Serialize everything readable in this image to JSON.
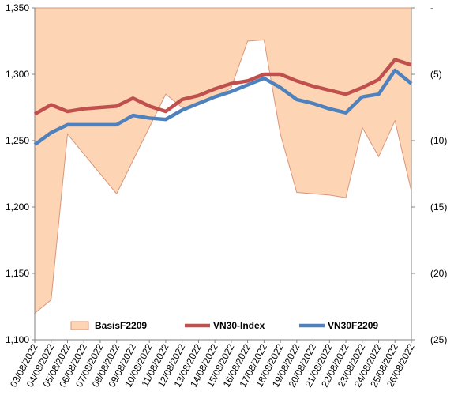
{
  "chart_data": {
    "type": "line",
    "categories": [
      "03/08/2022",
      "04/08/2022",
      "05/08/2022",
      "06/08/2022",
      "07/08/2022",
      "08/08/2022",
      "09/08/2022",
      "10/08/2022",
      "11/08/2022",
      "12/08/2022",
      "13/08/2022",
      "14/08/2022",
      "15/08/2022",
      "16/08/2022",
      "17/08/2022",
      "18/08/2022",
      "19/08/2022",
      "20/08/2022",
      "21/08/2022",
      "22/08/2022",
      "23/08/2022",
      "24/08/2022",
      "25/08/2022",
      "26/08/2022"
    ],
    "y_left": {
      "ylim": [
        1100,
        1350
      ],
      "ticks": [
        1100,
        1150,
        1200,
        1250,
        1300,
        1350
      ],
      "tick_labels": [
        "1,100",
        "1,150",
        "1,200",
        "1,250",
        "1,300",
        "1,350"
      ]
    },
    "y_right": {
      "ylim": [
        0,
        -25
      ],
      "ticks": [
        0,
        -5,
        -10,
        -15,
        -20,
        -25
      ],
      "tick_labels": [
        "-",
        "(5)",
        "(10)",
        "(15)",
        "(20)",
        "(25)"
      ]
    },
    "series": [
      {
        "name": "BasisF2209",
        "type": "area",
        "axis": "right",
        "color": "#FDD5B4",
        "edge_color": "#D9967A",
        "values": [
          -23,
          -22,
          -9.5,
          -11,
          -12.5,
          -14,
          -11.5,
          -9,
          -6.5,
          -7.5,
          -7.3,
          -6.8,
          -6,
          -2.5,
          -2.4,
          -9.5,
          -13.9,
          -14,
          -14.1,
          -14.3,
          -9,
          -11.2,
          -8.5,
          -13.8
        ]
      },
      {
        "name": "VN30-Index",
        "type": "line",
        "axis": "left",
        "color": "#C0504D",
        "values": [
          1270,
          1277,
          1272,
          1274,
          1275,
          1276,
          1282,
          1276,
          1272,
          1281,
          1284,
          1289,
          1293,
          1295,
          1300,
          1300,
          1295,
          1291,
          1288,
          1285,
          1290,
          1296,
          1311,
          1307
        ]
      },
      {
        "name": "VN30F2209",
        "type": "line",
        "axis": "left",
        "color": "#4F81BD",
        "values": [
          1247,
          1256,
          1262,
          1262,
          1262,
          1262,
          1269,
          1267,
          1266,
          1273,
          1278,
          1283,
          1287,
          1292,
          1297,
          1290,
          1281,
          1278,
          1274,
          1271,
          1283,
          1285,
          1303,
          1293
        ]
      }
    ],
    "legend": {
      "position": "bottom-inside",
      "entries": [
        "BasisF2209",
        "VN30-Index",
        "VN30F2209"
      ]
    },
    "grid": false
  }
}
